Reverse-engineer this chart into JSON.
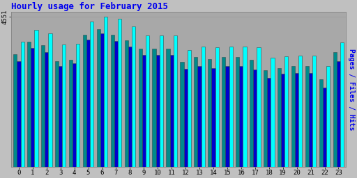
{
  "title": "Hourly usage for February 2015",
  "ylabel": "Pages / Files / Hits",
  "hours": [
    0,
    1,
    2,
    3,
    4,
    5,
    6,
    7,
    8,
    9,
    10,
    11,
    12,
    13,
    14,
    15,
    16,
    17,
    18,
    19,
    20,
    21,
    22,
    23
  ],
  "hits": [
    3800,
    4150,
    4050,
    3700,
    3720,
    4400,
    4551,
    4480,
    4250,
    3980,
    3980,
    3980,
    3550,
    3650,
    3630,
    3650,
    3650,
    3630,
    3300,
    3360,
    3380,
    3380,
    3050,
    3780
  ],
  "files": [
    3200,
    3600,
    3480,
    3050,
    3150,
    3850,
    4050,
    3820,
    3650,
    3400,
    3400,
    3400,
    2980,
    3050,
    3000,
    3050,
    3050,
    2950,
    2700,
    2820,
    2850,
    2850,
    2400,
    3200
  ],
  "pages": [
    3420,
    3800,
    3680,
    3200,
    3250,
    4000,
    4180,
    4000,
    3830,
    3580,
    3580,
    3580,
    3180,
    3320,
    3260,
    3320,
    3320,
    3250,
    2920,
    3000,
    3050,
    3050,
    2650,
    3480
  ],
  "hits_color": "#00FFFF",
  "files_color": "#0000CC",
  "pages_color": "#008B8B",
  "bg_color": "#C0C0C0",
  "plot_bg": "#A8A8A8",
  "title_color": "#0000EE",
  "ylabel_color": "#0000EE",
  "border_color": "#2F4F4F",
  "ylim_max": 4700,
  "ytick_val": 4551,
  "ytick_label": "4551"
}
